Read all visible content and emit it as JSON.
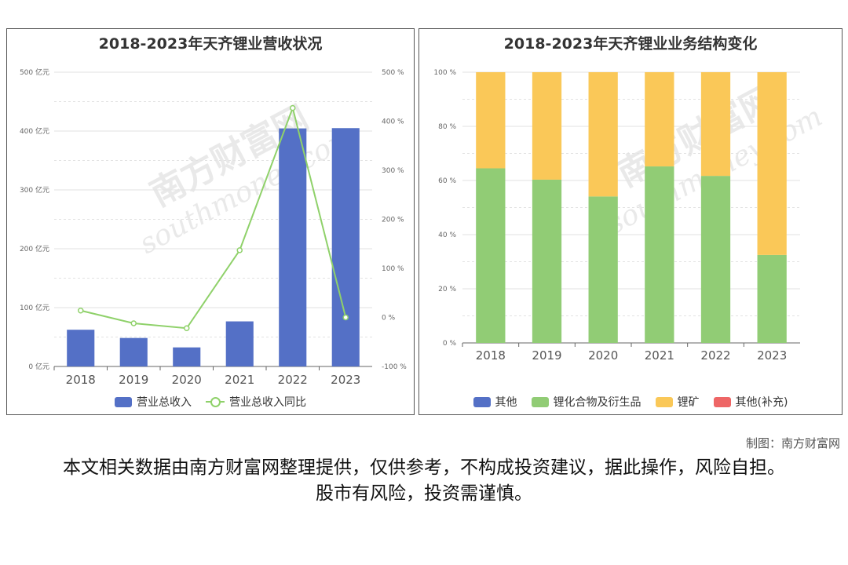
{
  "left_chart": {
    "title": "2018-2023年天齐锂业营收状况",
    "legend": {
      "bar_label": "营业总收入",
      "line_label": "营业总收入同比"
    },
    "colors": {
      "bar": "#5470c6",
      "line": "#8fd16a"
    }
  },
  "right_chart": {
    "title": "2018-2023年天齐锂业业务结构变化",
    "legend": [
      "其他",
      "锂化合物及衍生品",
      "锂矿",
      "其他(补充)"
    ],
    "colors": [
      "#5470c6",
      "#91cc75",
      "#fac858",
      "#ee6666"
    ]
  },
  "watermark": {
    "brand": "南方财富网",
    "site": "southmoney.com"
  },
  "source_note": "制图：南方财富网",
  "disclaimer": "本文相关数据由南方财富网整理提供，仅供参考，不构成投资建议，据此操作，风险自担。股市有风险，投资需谨慎。",
  "chart_data": [
    {
      "type": "bar",
      "title": "2018-2023年天齐锂业营收状况",
      "categories": [
        "2018",
        "2019",
        "2020",
        "2021",
        "2022",
        "2023"
      ],
      "series": [
        {
          "name": "营业总收入",
          "type": "bar",
          "axis": "left",
          "values": [
            62.4,
            48.4,
            32.4,
            76.6,
            404.5,
            405.0
          ]
        },
        {
          "name": "营业总收入同比",
          "type": "line",
          "axis": "right",
          "values": [
            14,
            -12,
            -22,
            137,
            427,
            0
          ]
        }
      ],
      "y_left": {
        "range": [
          0,
          500
        ],
        "ticks": [
          "0 亿元",
          "100 亿元",
          "200 亿元",
          "300 亿元",
          "400 亿元",
          "500 亿元"
        ]
      },
      "y_right": {
        "range": [
          -100,
          500
        ],
        "ticks": [
          "-100 %",
          "0 %",
          "100 %",
          "200 %",
          "300 %",
          "400 %",
          "500 %"
        ]
      },
      "grid": true,
      "legend_position": "bottom"
    },
    {
      "type": "bar",
      "stacked": true,
      "title": "2018-2023年天齐锂业业务结构变化",
      "categories": [
        "2018",
        "2019",
        "2020",
        "2021",
        "2022",
        "2023"
      ],
      "series": [
        {
          "name": "其他",
          "values": [
            0,
            0,
            0,
            0,
            0,
            0
          ]
        },
        {
          "name": "锂化合物及衍生品",
          "values": [
            64.5,
            60.3,
            54.1,
            65.2,
            61.7,
            32.5
          ]
        },
        {
          "name": "锂矿",
          "values": [
            35.5,
            39.7,
            45.9,
            34.8,
            38.3,
            67.5
          ]
        },
        {
          "name": "其他(补充)",
          "values": [
            0,
            0,
            0,
            0,
            0,
            0
          ]
        }
      ],
      "y": {
        "range": [
          0,
          100
        ],
        "ticks": [
          "0 %",
          "20 %",
          "40 %",
          "60 %",
          "80 %",
          "100 %"
        ]
      },
      "grid": true,
      "legend_position": "bottom"
    }
  ]
}
